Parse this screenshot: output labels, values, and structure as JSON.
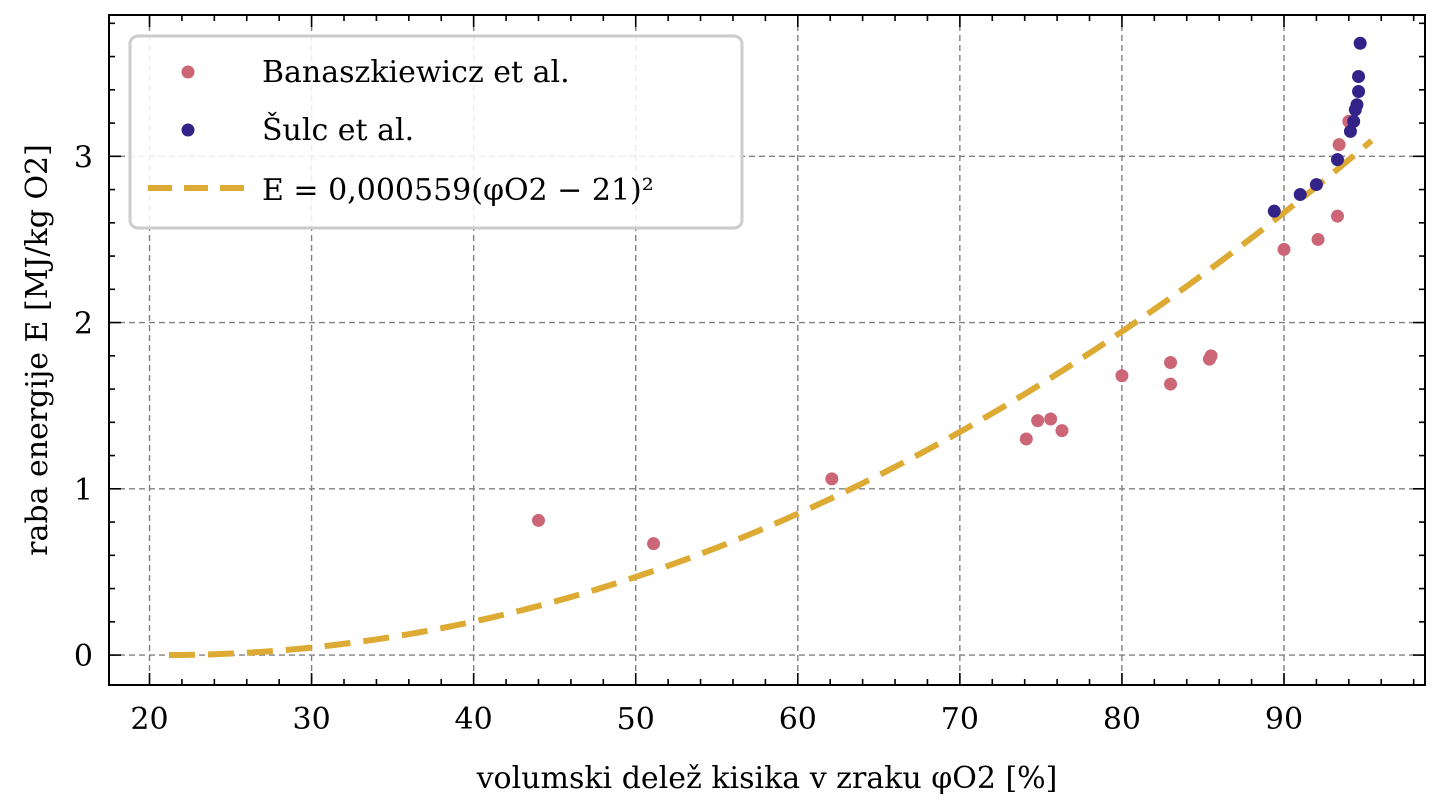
{
  "chart_data": {
    "type": "scatter",
    "xlabel": "volumski delež kisika v zraku φO2 [%]",
    "ylabel": "raba energije E [MJ/kg O2]",
    "xlim": [
      17.5,
      98.7
    ],
    "ylim": [
      -0.18,
      3.85
    ],
    "xticks": [
      20,
      30,
      40,
      50,
      60,
      70,
      80,
      90
    ],
    "yticks": [
      0,
      1,
      2,
      3
    ],
    "grid": true,
    "legend_position": "top-left",
    "series": [
      {
        "name": "Banaszkiewicz et al.",
        "kind": "scatter",
        "color": "#cc6677",
        "points": [
          [
            44.0,
            0.81
          ],
          [
            51.1,
            0.67
          ],
          [
            62.1,
            1.06
          ],
          [
            74.1,
            1.3
          ],
          [
            74.8,
            1.41
          ],
          [
            75.6,
            1.42
          ],
          [
            76.3,
            1.35
          ],
          [
            80.0,
            1.68
          ],
          [
            83.0,
            1.76
          ],
          [
            83.0,
            1.63
          ],
          [
            85.4,
            1.78
          ],
          [
            85.5,
            1.8
          ],
          [
            90.0,
            2.44
          ],
          [
            92.1,
            2.5
          ],
          [
            93.3,
            2.64
          ],
          [
            93.4,
            3.07
          ],
          [
            94.0,
            3.21
          ]
        ]
      },
      {
        "name": "Šulc et al.",
        "kind": "scatter",
        "color": "#332288",
        "points": [
          [
            89.4,
            2.67
          ],
          [
            91.0,
            2.77
          ],
          [
            92.0,
            2.83
          ],
          [
            93.3,
            2.98
          ],
          [
            94.1,
            3.15
          ],
          [
            94.3,
            3.21
          ],
          [
            94.4,
            3.28
          ],
          [
            94.5,
            3.31
          ],
          [
            94.6,
            3.39
          ],
          [
            94.6,
            3.48
          ],
          [
            94.7,
            3.68
          ]
        ]
      },
      {
        "name": "E = 0,000559(φO2 − 21)²",
        "kind": "line",
        "color": "#ddaa33",
        "coefficient": 0.000559,
        "offset": 21,
        "x_range": [
          21.2,
          95.4
        ]
      }
    ]
  },
  "legend": {
    "items": [
      {
        "label": "Banaszkiewicz et al.",
        "marker": "dot",
        "color": "#cc6677"
      },
      {
        "label": "Šulc et al.",
        "marker": "dot",
        "color": "#332288"
      },
      {
        "label": "E = 0,000559(φO2 − 21)²",
        "marker": "dash",
        "color": "#ddaa33"
      }
    ]
  }
}
